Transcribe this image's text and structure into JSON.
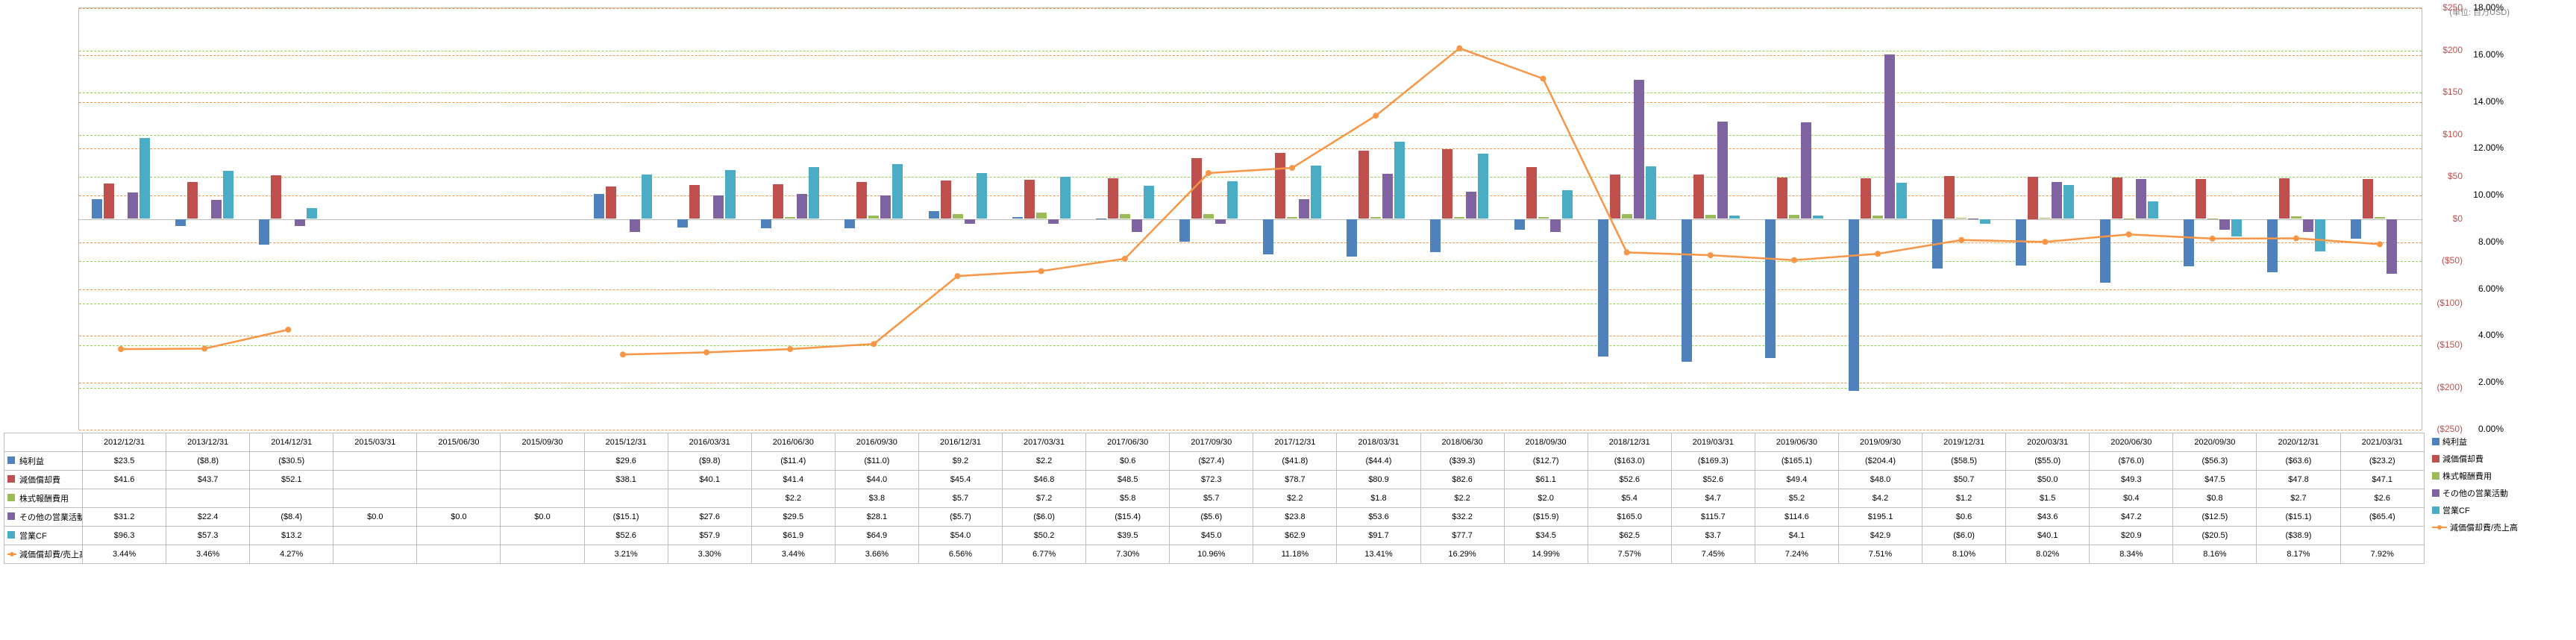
{
  "unit_label": "(単位: 百万USD)",
  "colors": {
    "net_income": "#4f81bd",
    "depreciation": "#c0504d",
    "stock_comp": "#9bbb59",
    "other_op": "#8064a2",
    "op_cf": "#4bacc6",
    "ratio_line": "#f79646",
    "grid_green": "#92d050",
    "grid_orange": "#f79646",
    "axis": "#bfbfbf"
  },
  "left_axis": {
    "min": -250,
    "max": 250,
    "step": 50,
    "ticks": [
      -250,
      -200,
      -150,
      -100,
      -50,
      0,
      50,
      100,
      150,
      200,
      250
    ]
  },
  "right_axis": {
    "min": 0,
    "max": 18,
    "step": 2,
    "ticks": [
      0,
      2,
      4,
      6,
      8,
      10,
      12,
      14,
      16,
      18
    ]
  },
  "periods": [
    "2012/12/31",
    "2013/12/31",
    "2014/12/31",
    "2015/03/31",
    "2015/06/30",
    "2015/09/30",
    "2015/12/31",
    "2016/03/31",
    "2016/06/30",
    "2016/09/30",
    "2016/12/31",
    "2017/03/31",
    "2017/06/30",
    "2017/09/30",
    "2017/12/31",
    "2018/03/31",
    "2018/06/30",
    "2018/09/30",
    "2018/12/31",
    "2019/03/31",
    "2019/06/30",
    "2019/09/30",
    "2019/12/31",
    "2020/03/31",
    "2020/06/30",
    "2020/09/30",
    "2020/12/31",
    "2021/03/31"
  ],
  "rows": [
    {
      "key": "net_income",
      "label": "純利益",
      "type": "bar",
      "values": [
        23.5,
        -8.8,
        -30.5,
        null,
        null,
        null,
        29.6,
        -9.8,
        -11.4,
        -11.0,
        9.2,
        2.2,
        0.6,
        -27.4,
        -41.8,
        -44.4,
        -39.3,
        -12.7,
        -163.0,
        -169.3,
        -165.1,
        -204.4,
        -58.5,
        -55.0,
        -76.0,
        -56.3,
        -63.6,
        -23.2
      ],
      "display": [
        "$23.5",
        "($8.8)",
        "($30.5)",
        "",
        "",
        "",
        "$29.6",
        "($9.8)",
        "($11.4)",
        "($11.0)",
        "$9.2",
        "$2.2",
        "$0.6",
        "($27.4)",
        "($41.8)",
        "($44.4)",
        "($39.3)",
        "($12.7)",
        "($163.0)",
        "($169.3)",
        "($165.1)",
        "($204.4)",
        "($58.5)",
        "($55.0)",
        "($76.0)",
        "($56.3)",
        "($63.6)",
        "($23.2)"
      ]
    },
    {
      "key": "depreciation",
      "label": "減価償却費",
      "type": "bar",
      "values": [
        41.6,
        43.7,
        52.1,
        null,
        null,
        null,
        38.1,
        40.1,
        41.4,
        44.0,
        45.4,
        46.8,
        48.5,
        72.3,
        78.7,
        80.9,
        82.6,
        61.1,
        52.6,
        52.6,
        49.4,
        48.0,
        50.7,
        50.0,
        49.3,
        47.5,
        47.8,
        47.1
      ],
      "display": [
        "$41.6",
        "$43.7",
        "$52.1",
        "",
        "",
        "",
        "$38.1",
        "$40.1",
        "$41.4",
        "$44.0",
        "$45.4",
        "$46.8",
        "$48.5",
        "$72.3",
        "$78.7",
        "$80.9",
        "$82.6",
        "$61.1",
        "$52.6",
        "$52.6",
        "$49.4",
        "$48.0",
        "$50.7",
        "$50.0",
        "$49.3",
        "$47.5",
        "$47.8",
        "$47.1"
      ]
    },
    {
      "key": "stock_comp",
      "label": "株式報酬費用",
      "type": "bar",
      "values": [
        null,
        null,
        null,
        null,
        null,
        null,
        null,
        null,
        2.2,
        3.8,
        5.7,
        7.2,
        5.8,
        5.7,
        2.2,
        1.8,
        2.2,
        2.0,
        5.4,
        4.7,
        5.2,
        4.2,
        1.2,
        1.5,
        0.4,
        0.8,
        2.7,
        2.6
      ],
      "display": [
        "",
        "",
        "",
        "",
        "",
        "",
        "",
        "",
        "$2.2",
        "$3.8",
        "$5.7",
        "$7.2",
        "$5.8",
        "$5.7",
        "$2.2",
        "$1.8",
        "$2.2",
        "$2.0",
        "$5.4",
        "$4.7",
        "$5.2",
        "$4.2",
        "$1.2",
        "$1.5",
        "$0.4",
        "$0.8",
        "$2.7",
        "$2.6"
      ]
    },
    {
      "key": "other_op",
      "label": "その他の営業活動",
      "type": "bar",
      "values": [
        31.2,
        22.4,
        -8.4,
        0.0,
        0.0,
        0.0,
        -15.1,
        27.6,
        29.5,
        28.1,
        -5.7,
        -6.0,
        -15.4,
        -5.6,
        23.8,
        53.6,
        32.2,
        -15.9,
        165.0,
        115.7,
        114.6,
        195.1,
        0.6,
        43.6,
        47.2,
        -12.5,
        -15.1,
        -65.4
      ],
      "display": [
        "$31.2",
        "$22.4",
        "($8.4)",
        "$0.0",
        "$0.0",
        "$0.0",
        "($15.1)",
        "$27.6",
        "$29.5",
        "$28.1",
        "($5.7)",
        "($6.0)",
        "($15.4)",
        "($5.6)",
        "$23.8",
        "$53.6",
        "$32.2",
        "($15.9)",
        "$165.0",
        "$115.7",
        "$114.6",
        "$195.1",
        "$0.6",
        "$43.6",
        "$47.2",
        "($12.5)",
        "($15.1)",
        "($65.4)"
      ]
    },
    {
      "key": "op_cf",
      "label": "営業CF",
      "type": "bar",
      "values": [
        96.3,
        57.3,
        13.2,
        null,
        null,
        null,
        52.6,
        57.9,
        61.9,
        64.9,
        54.0,
        50.2,
        39.5,
        45.0,
        62.9,
        91.7,
        77.7,
        34.5,
        62.5,
        3.7,
        4.1,
        42.9,
        -6.0,
        40.1,
        20.9,
        -20.5,
        -38.9,
        null
      ],
      "display": [
        "$96.3",
        "$57.3",
        "$13.2",
        "",
        "",
        "",
        "$52.6",
        "$57.9",
        "$61.9",
        "$64.9",
        "$54.0",
        "$50.2",
        "$39.5",
        "$45.0",
        "$62.9",
        "$91.7",
        "$77.7",
        "$34.5",
        "$62.5",
        "$3.7",
        "$4.1",
        "$42.9",
        "($6.0)",
        "$40.1",
        "$20.9",
        "($20.5)",
        "($38.9)",
        ""
      ]
    },
    {
      "key": "ratio",
      "label": "減価償却費/売上高",
      "type": "line",
      "values": [
        3.44,
        3.46,
        4.27,
        null,
        null,
        null,
        3.21,
        3.3,
        3.44,
        3.66,
        6.56,
        6.77,
        7.3,
        10.96,
        11.18,
        13.41,
        16.29,
        14.99,
        7.57,
        7.45,
        7.24,
        7.51,
        8.1,
        8.02,
        8.34,
        8.16,
        8.17,
        7.92
      ],
      "display": [
        "3.44%",
        "3.46%",
        "4.27%",
        "",
        "",
        "",
        "3.21%",
        "3.30%",
        "3.44%",
        "3.66%",
        "6.56%",
        "6.77%",
        "7.30%",
        "10.96%",
        "11.18%",
        "13.41%",
        "16.29%",
        "14.99%",
        "7.57%",
        "7.45%",
        "7.24%",
        "7.51%",
        "8.10%",
        "8.02%",
        "8.34%",
        "8.16%",
        "8.17%",
        "7.92%"
      ]
    }
  ]
}
